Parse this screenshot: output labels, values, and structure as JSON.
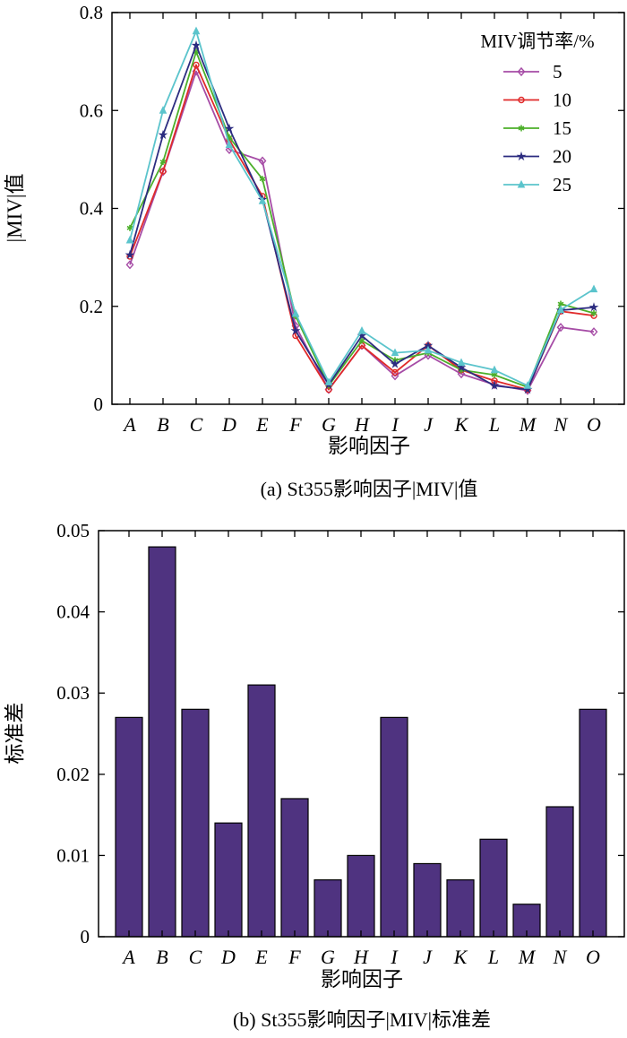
{
  "colors": {
    "bar_fill": "#4f3380",
    "axis": "#000000",
    "series": [
      "#a64ca6",
      "#e02a2a",
      "#4caf2a",
      "#2c2c80",
      "#5bc4cc"
    ]
  },
  "chart_data": [
    {
      "type": "line",
      "caption": "(a) St355影响因子|MIV|值",
      "xlabel": "影响因子",
      "ylabel": "|MIV|值",
      "categories": [
        "A",
        "B",
        "C",
        "D",
        "E",
        "F",
        "G",
        "H",
        "I",
        "J",
        "K",
        "L",
        "M",
        "N",
        "O"
      ],
      "ylim": [
        0,
        0.8
      ],
      "yticks": [
        "0",
        "0.2",
        "0.4",
        "0.6",
        "0.8"
      ],
      "legend": {
        "title": "MIV调节率/%",
        "placement": "top-right"
      },
      "series": [
        {
          "name": "5",
          "marker": "diamond",
          "values": [
            0.285,
            0.475,
            0.68,
            0.52,
            0.497,
            0.16,
            0.03,
            0.12,
            0.058,
            0.1,
            0.062,
            0.04,
            0.028,
            0.157,
            0.148
          ]
        },
        {
          "name": "10",
          "marker": "circle",
          "values": [
            0.302,
            0.476,
            0.693,
            0.54,
            0.425,
            0.14,
            0.03,
            0.12,
            0.065,
            0.12,
            0.07,
            0.048,
            0.03,
            0.19,
            0.181
          ]
        },
        {
          "name": "15",
          "marker": "asterisk",
          "values": [
            0.36,
            0.495,
            0.72,
            0.545,
            0.46,
            0.18,
            0.038,
            0.13,
            0.09,
            0.105,
            0.07,
            0.06,
            0.035,
            0.205,
            0.186
          ]
        },
        {
          "name": "20",
          "marker": "star",
          "values": [
            0.305,
            0.55,
            0.733,
            0.563,
            0.418,
            0.15,
            0.04,
            0.14,
            0.082,
            0.12,
            0.075,
            0.038,
            0.03,
            0.192,
            0.198
          ]
        },
        {
          "name": "25",
          "marker": "triangle",
          "values": [
            0.335,
            0.6,
            0.762,
            0.53,
            0.415,
            0.185,
            0.045,
            0.15,
            0.105,
            0.11,
            0.085,
            0.07,
            0.038,
            0.193,
            0.235
          ]
        }
      ]
    },
    {
      "type": "bar",
      "caption": "(b) St355影响因子|MIV|标准差",
      "xlabel": "影响因子",
      "ylabel": "标准差",
      "categories": [
        "A",
        "B",
        "C",
        "D",
        "E",
        "F",
        "G",
        "H",
        "I",
        "J",
        "K",
        "L",
        "M",
        "N",
        "O"
      ],
      "values": [
        0.027,
        0.048,
        0.028,
        0.014,
        0.031,
        0.017,
        0.007,
        0.01,
        0.027,
        0.009,
        0.007,
        0.012,
        0.004,
        0.016,
        0.028
      ],
      "ylim": [
        0,
        0.05
      ],
      "yticks": [
        "0",
        "0.01",
        "0.02",
        "0.03",
        "0.04",
        "0.05"
      ]
    }
  ]
}
